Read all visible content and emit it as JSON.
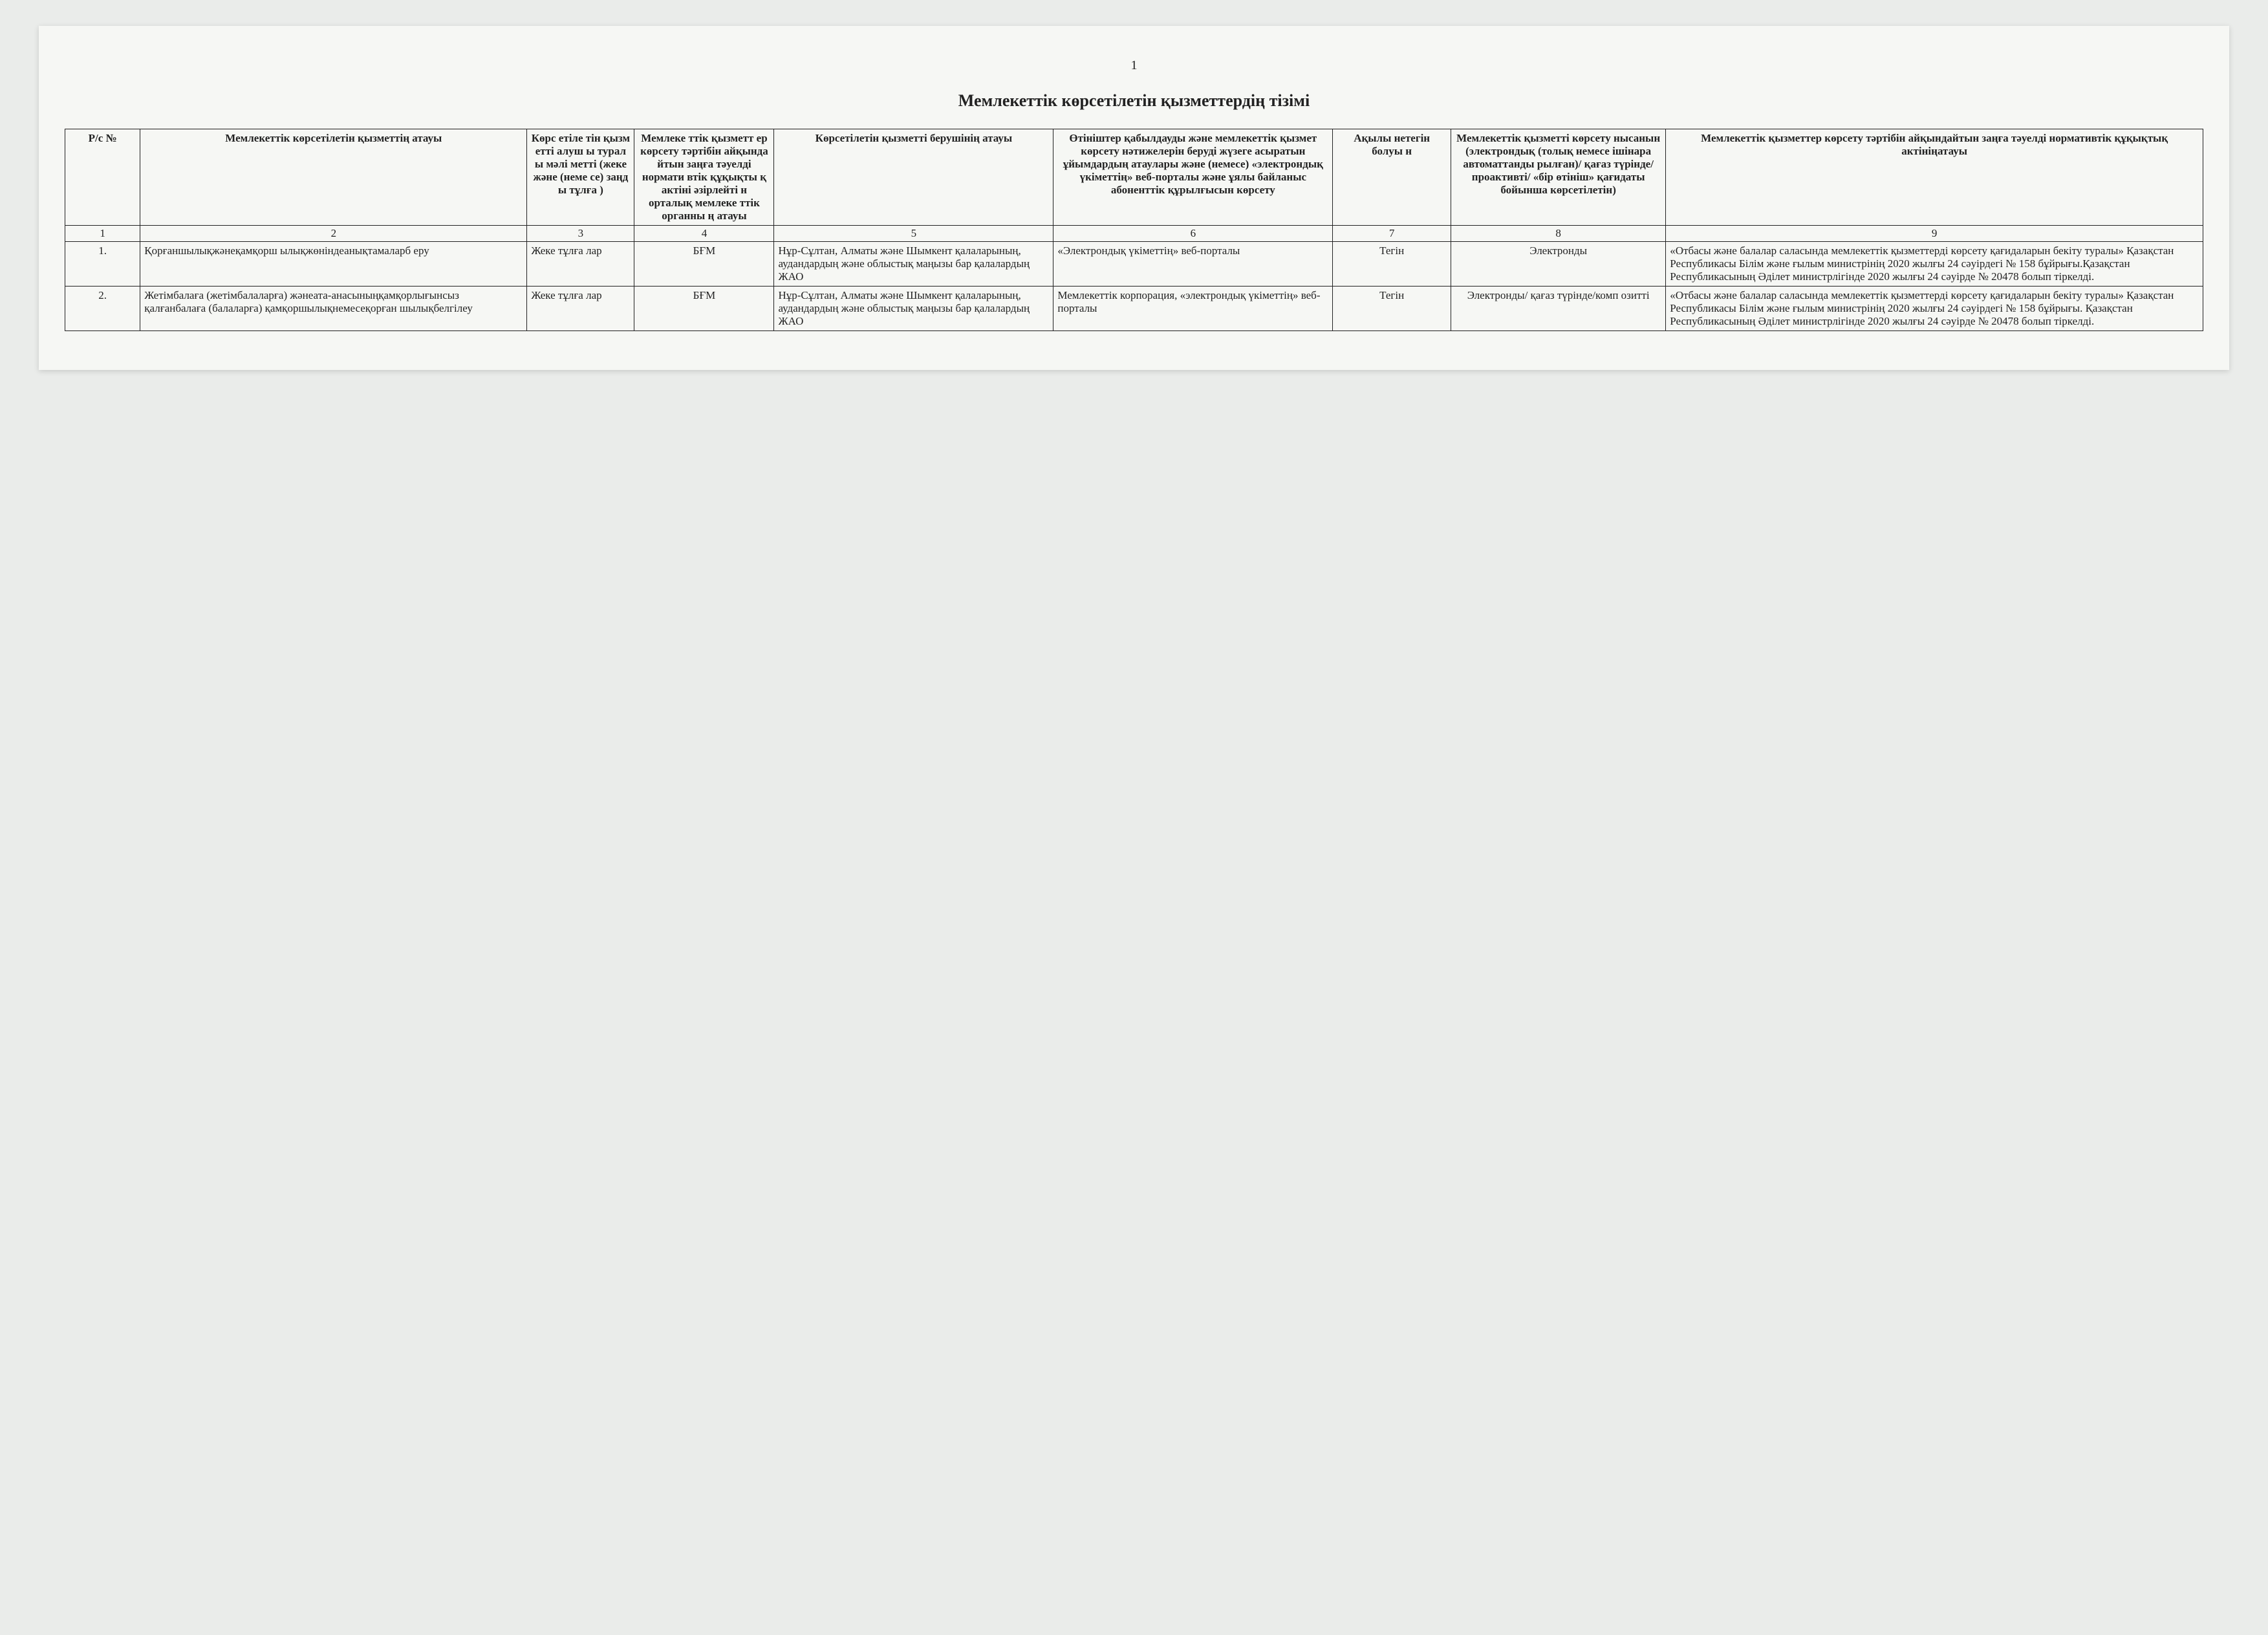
{
  "page_number": "1",
  "title": "Мемлекеттік көрсетілетін қызметтердің тізімі",
  "headers": {
    "c1": "Р/с №",
    "c2": "Мемлекеттік көрсетілетін қызметтің атауы",
    "c3": "Көрс етіле тін қызм етті алуш ы турал ы мәлі метті (жеке және (неме се) заңд ы тұлға )",
    "c4": "Мемлеке ттік қызметт ер көрсету тәртібін айқында йтын заңға тәуелді нормати втік құқықты қ актіні әзірлейті н орталық мемлеке ттік органны ң атауы",
    "c5": "Көрсетілетін қызметті берушінің атауы",
    "c6": "Өтініштер қабылдауды және мемлекеттік қызмет көрсету нәтижелерін беруді жүзеге асыратын ұйымдардың атаулары және (немесе) «электрондық үкіметтің» веб-порталы және ұялы байланыс абоненттік құрылғысын көрсету",
    "c7": "Ақылы нетегін болуы н",
    "c8": "Мемлекеттік қызметті көрсету нысанын (электрондық (толық немесе ішінара автоматтанды рылған)/ қағаз түрінде/ проактивті/ «бір өтініш» қағидаты бойынша көрсетілетін)",
    "c9": "Мемлекеттік қызметтер көрсету тәртібін айқындайтын заңға тәуелді нормативтік құқықтық актініңатауы"
  },
  "num_row": [
    "1",
    "2",
    "3",
    "4",
    "5",
    "6",
    "7",
    "8",
    "9"
  ],
  "rows": [
    {
      "n": "1.",
      "name": "Қорғаншылықжәнеқамқорш ылықжөніндеанықтамаларб еру",
      "recipient": "Жеке тұлға лар",
      "authority": "БҒМ",
      "provider": "Нұр-Сұлтан, Алматы және Шымкент қалаларының, аудандардың және облыстық маңызы бар қалалардың ЖАО",
      "org": "«Электрондық үкіметтің» веб-порталы",
      "paid": "Тегін",
      "form": "Электронды",
      "act": "«Отбасы және балалар саласында мемлекеттік қызметтерді көрсету қағидаларын бекіту туралы» Қазақстан Республикасы Білім және ғылым министрінің 2020 жылғы 24 сәуірдегі № 158 бұйрығы.Қазақстан Республикасының Әділет министрлігінде 2020 жылғы 24 сәуірде № 20478 болып тіркелді."
    },
    {
      "n": "2.",
      "name": "Жетімбалаға (жетімбалаларға) жәнеата-анасыныңқамқорлығынсыз қалғанбалаға (балаларға) қамқоршылықнемесеқорған шылықбелгілеу",
      "recipient": "Жеке тұлға лар",
      "authority": "БҒМ",
      "provider": "Нұр-Сұлтан, Алматы және Шымкент қалаларының, аудандардың және облыстық маңызы бар қалалардың ЖАО",
      "org": "Мемлекеттік корпорация, «электрондық үкіметтің» веб-порталы",
      "paid": "Тегін",
      "form": "Электронды/ қағаз түрінде/комп озитті",
      "act": "«Отбасы және балалар саласында мемлекеттік қызметтерді көрсету қағидаларын бекіту туралы» Қазақстан Республикасы Білім және ғылым министрінің 2020 жылғы 24 сәуірдегі № 158 бұйрығы. Қазақстан Республикасының Әділет министрлігінде 2020 жылғы 24 сәуірде № 20478 болып тіркелді."
    }
  ]
}
